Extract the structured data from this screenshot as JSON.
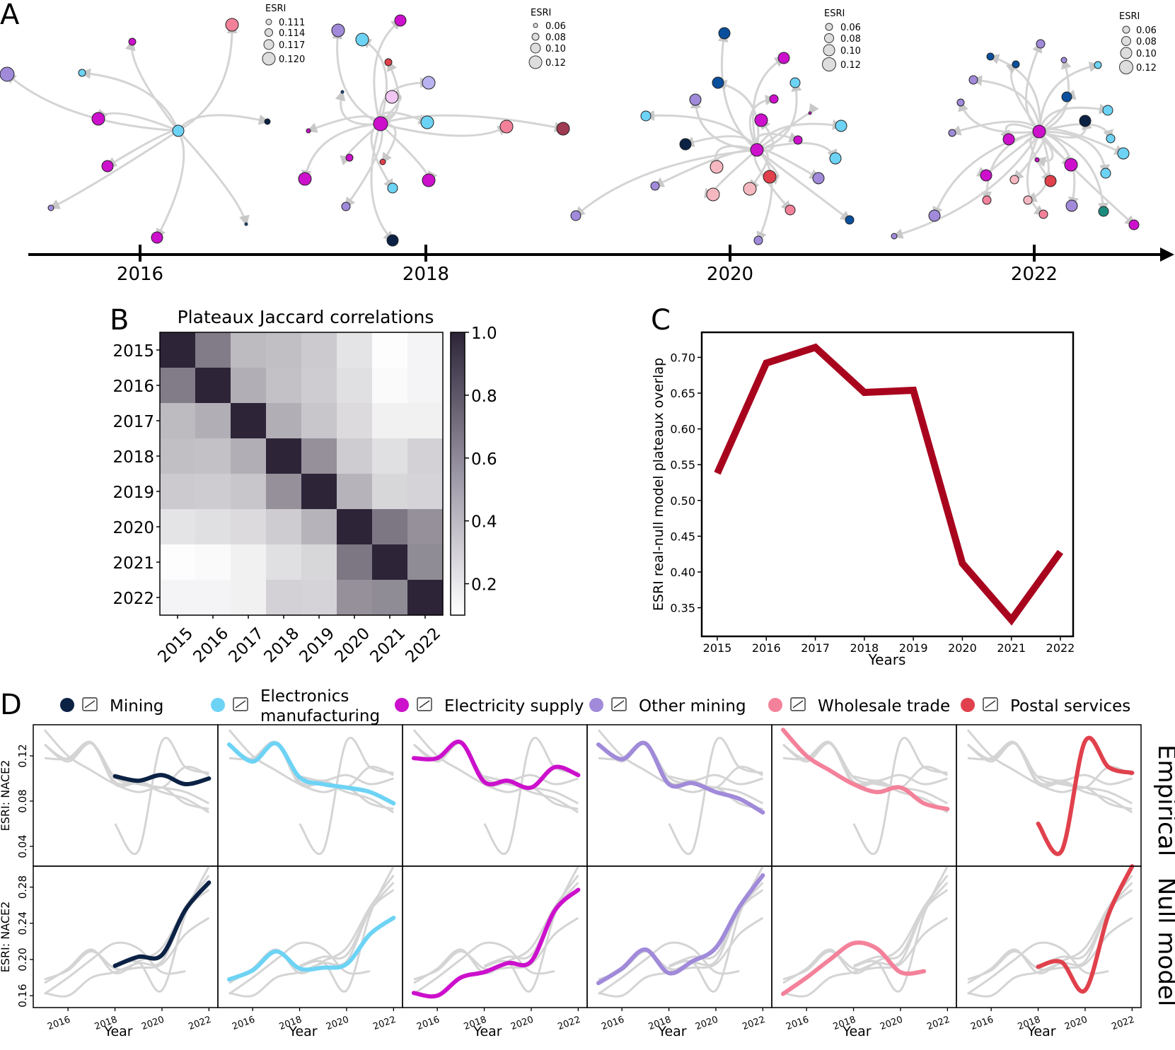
{
  "panel_labels": {
    "a": "A",
    "b": "B",
    "c": "C",
    "d": "D"
  },
  "colors": {
    "edge": "#d4d4d4",
    "Mining": "#0b2245",
    "Electronics manufacturing": "#6dd3f5",
    "Electricity supply": "#cc10cc",
    "Other mining": "#a08ad9",
    "Wholesale trade": "#f4819a",
    "Postal services": "#e0414c",
    "plateau_line": "#a8041e"
  },
  "timeline": {
    "ticks": [
      "2016",
      "2018",
      "2020",
      "2022"
    ],
    "esri_legends": [
      {
        "title": "ESRI",
        "values": [
          "0.111",
          "0.114",
          "0.117",
          "0.120"
        ]
      },
      {
        "title": "ESRI",
        "values": [
          "0.06",
          "0.08",
          "0.10",
          "0.12"
        ]
      },
      {
        "title": "ESRI",
        "values": [
          "0.06",
          "0.08",
          "0.10",
          "0.12"
        ]
      },
      {
        "title": "ESRI",
        "values": [
          "0.06",
          "0.08",
          "0.10",
          "0.12"
        ]
      }
    ]
  },
  "chart_data": [
    {
      "id": "B",
      "type": "heatmap",
      "title": "Plateaux Jaccard correlations",
      "labels": [
        "2015",
        "2016",
        "2017",
        "2018",
        "2019",
        "2020",
        "2021",
        "2022"
      ],
      "matrix": [
        [
          1.0,
          0.62,
          0.35,
          0.33,
          0.28,
          0.17,
          0.06,
          0.1
        ],
        [
          0.62,
          1.0,
          0.4,
          0.32,
          0.27,
          0.19,
          0.07,
          0.1
        ],
        [
          0.35,
          0.4,
          1.0,
          0.4,
          0.3,
          0.21,
          0.11,
          0.11
        ],
        [
          0.33,
          0.32,
          0.4,
          1.0,
          0.53,
          0.27,
          0.19,
          0.25
        ],
        [
          0.28,
          0.27,
          0.3,
          0.53,
          1.0,
          0.38,
          0.23,
          0.24
        ],
        [
          0.17,
          0.19,
          0.21,
          0.27,
          0.38,
          1.0,
          0.64,
          0.53
        ],
        [
          0.06,
          0.07,
          0.11,
          0.19,
          0.23,
          0.64,
          1.0,
          0.55
        ],
        [
          0.1,
          0.1,
          0.11,
          0.25,
          0.24,
          0.53,
          0.55,
          1.0
        ]
      ],
      "colorbar": {
        "range": [
          0.1,
          1.0
        ],
        "ticks": [
          "1.0",
          "0.8",
          "0.6",
          "0.4",
          "0.2"
        ]
      }
    },
    {
      "id": "C",
      "type": "line",
      "x": [
        "2015",
        "2016",
        "2017",
        "2018",
        "2019",
        "2020",
        "2021",
        "2022"
      ],
      "y": [
        0.538,
        0.692,
        0.714,
        0.651,
        0.654,
        0.412,
        0.333,
        0.428
      ],
      "ylabel": "ESRI real-null model plateaux overlap",
      "xlabel": "Years",
      "ylim": [
        0.31,
        0.735
      ],
      "yticks": [
        "0.35",
        "0.40",
        "0.45",
        "0.50",
        "0.55",
        "0.60",
        "0.65",
        "0.70"
      ]
    },
    {
      "id": "D",
      "type": "line",
      "x": [
        2015,
        2016,
        2017,
        2018,
        2019,
        2020,
        2021,
        2022
      ],
      "xticks": [
        "2016",
        "2018",
        "2020",
        "2022"
      ],
      "xlabel": "Year",
      "ylabel": "ESRI: NACE2",
      "row_labels": [
        "Empirical",
        "Null model"
      ],
      "empirical_ylim": [
        0.025,
        0.145
      ],
      "empirical_yticks": [
        "0.04",
        "0.08",
        "0.12"
      ],
      "null_ylim": [
        0.15,
        0.3
      ],
      "null_yticks": [
        "0.16",
        "0.20",
        "0.24",
        "0.28"
      ],
      "series": [
        {
          "name": "Mining",
          "label_lines": [
            "Mining"
          ],
          "empirical": [
            [
              2018,
              0.102
            ],
            [
              2019,
              0.098
            ],
            [
              2020,
              0.103
            ],
            [
              2021,
              0.095
            ],
            [
              2022,
              0.1
            ]
          ],
          "null": [
            [
              2018,
              0.193
            ],
            [
              2019,
              0.203
            ],
            [
              2020,
              0.205
            ],
            [
              2021,
              0.255
            ],
            [
              2022,
              0.285
            ]
          ]
        },
        {
          "name": "Electronics manufacturing",
          "label_lines": [
            "Electronics",
            "manufacturing"
          ],
          "empirical": [
            [
              2015,
              0.13
            ],
            [
              2016,
              0.115
            ],
            [
              2017,
              0.131
            ],
            [
              2018,
              0.101
            ],
            [
              2019,
              0.095
            ],
            [
              2020,
              0.092
            ],
            [
              2021,
              0.088
            ],
            [
              2022,
              0.078
            ]
          ],
          "null": [
            [
              2015,
              0.178
            ],
            [
              2016,
              0.188
            ],
            [
              2017,
              0.209
            ],
            [
              2018,
              0.19
            ],
            [
              2019,
              0.191
            ],
            [
              2020,
              0.195
            ],
            [
              2021,
              0.228
            ],
            [
              2022,
              0.246
            ]
          ]
        },
        {
          "name": "Electricity supply",
          "label_lines": [
            "Electricity supply"
          ],
          "empirical": [
            [
              2015,
              0.118
            ],
            [
              2016,
              0.118
            ],
            [
              2017,
              0.132
            ],
            [
              2018,
              0.097
            ],
            [
              2019,
              0.098
            ],
            [
              2020,
              0.092
            ],
            [
              2021,
              0.11
            ],
            [
              2022,
              0.103
            ]
          ],
          "null": [
            [
              2015,
              0.163
            ],
            [
              2016,
              0.16
            ],
            [
              2017,
              0.18
            ],
            [
              2018,
              0.186
            ],
            [
              2019,
              0.196
            ],
            [
              2020,
              0.198
            ],
            [
              2021,
              0.254
            ],
            [
              2022,
              0.277
            ]
          ]
        },
        {
          "name": "Other mining",
          "label_lines": [
            "Other mining"
          ],
          "empirical": [
            [
              2015,
              0.13
            ],
            [
              2016,
              0.117
            ],
            [
              2017,
              0.131
            ],
            [
              2018,
              0.095
            ],
            [
              2019,
              0.096
            ],
            [
              2020,
              0.088
            ],
            [
              2021,
              0.082
            ],
            [
              2022,
              0.07
            ]
          ],
          "null": [
            [
              2015,
              0.174
            ],
            [
              2016,
              0.19
            ],
            [
              2017,
              0.211
            ],
            [
              2018,
              0.185
            ],
            [
              2019,
              0.198
            ],
            [
              2020,
              0.213
            ],
            [
              2021,
              0.258
            ],
            [
              2022,
              0.293
            ]
          ]
        },
        {
          "name": "Wholesale trade",
          "label_lines": [
            "Wholesale trade"
          ],
          "empirical": [
            [
              2015,
              0.143
            ],
            [
              2016,
              0.12
            ],
            [
              2017,
              0.107
            ],
            [
              2018,
              0.095
            ],
            [
              2019,
              0.088
            ],
            [
              2020,
              0.092
            ],
            [
              2021,
              0.078
            ],
            [
              2022,
              0.073
            ]
          ],
          "null": [
            [
              2015,
              0.162
            ],
            [
              2016,
              0.18
            ],
            [
              2017,
              0.2
            ],
            [
              2018,
              0.218
            ],
            [
              2019,
              0.212
            ],
            [
              2020,
              0.186
            ],
            [
              2021,
              0.187
            ]
          ]
        },
        {
          "name": "Postal services",
          "label_lines": [
            "Postal services"
          ],
          "empirical": [
            [
              2018,
              0.06
            ],
            [
              2019,
              0.036
            ],
            [
              2020,
              0.133
            ],
            [
              2021,
              0.11
            ],
            [
              2022,
              0.105
            ]
          ],
          "null": [
            [
              2018,
              0.192
            ],
            [
              2019,
              0.197
            ],
            [
              2020,
              0.166
            ],
            [
              2021,
              0.25
            ],
            [
              2022,
              0.303
            ]
          ]
        }
      ]
    }
  ]
}
